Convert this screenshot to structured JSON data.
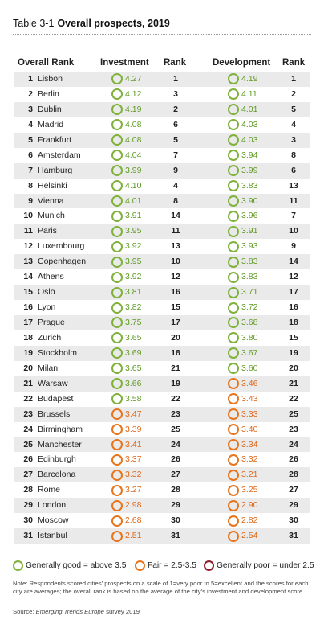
{
  "title": {
    "number": "Table 3-1",
    "text": "Overall prospects, 2019"
  },
  "columns": {
    "overall_rank": "Overall Rank",
    "investment": "Investment",
    "inv_rank": "Rank",
    "development": "Development",
    "dev_rank": "Rank"
  },
  "colors": {
    "good": "#7fb13b",
    "fair": "#e8741b",
    "poor": "#8b1d2c"
  },
  "rows": [
    {
      "rank": "1",
      "city": "Lisbon",
      "inv": "4.27",
      "inv_cat": "good",
      "inv_rank": "1",
      "dev": "4.19",
      "dev_cat": "good",
      "dev_rank": "1"
    },
    {
      "rank": "2",
      "city": "Berlin",
      "inv": "4.12",
      "inv_cat": "good",
      "inv_rank": "3",
      "dev": "4.11",
      "dev_cat": "good",
      "dev_rank": "2"
    },
    {
      "rank": "3",
      "city": "Dublin",
      "inv": "4.19",
      "inv_cat": "good",
      "inv_rank": "2",
      "dev": "4.01",
      "dev_cat": "good",
      "dev_rank": "5"
    },
    {
      "rank": "4",
      "city": "Madrid",
      "inv": "4.08",
      "inv_cat": "good",
      "inv_rank": "6",
      "dev": "4.03",
      "dev_cat": "good",
      "dev_rank": "4"
    },
    {
      "rank": "5",
      "city": "Frankfurt",
      "inv": "4.08",
      "inv_cat": "good",
      "inv_rank": "5",
      "dev": "4.03",
      "dev_cat": "good",
      "dev_rank": "3"
    },
    {
      "rank": "6",
      "city": "Amsterdam",
      "inv": "4.04",
      "inv_cat": "good",
      "inv_rank": "7",
      "dev": "3.94",
      "dev_cat": "good",
      "dev_rank": "8"
    },
    {
      "rank": "7",
      "city": "Hamburg",
      "inv": "3.99",
      "inv_cat": "good",
      "inv_rank": "9",
      "dev": "3.99",
      "dev_cat": "good",
      "dev_rank": "6"
    },
    {
      "rank": "8",
      "city": "Helsinki",
      "inv": "4.10",
      "inv_cat": "good",
      "inv_rank": "4",
      "dev": "3.83",
      "dev_cat": "good",
      "dev_rank": "13"
    },
    {
      "rank": "9",
      "city": "Vienna",
      "inv": "4.01",
      "inv_cat": "good",
      "inv_rank": "8",
      "dev": "3.90",
      "dev_cat": "good",
      "dev_rank": "11"
    },
    {
      "rank": "10",
      "city": "Munich",
      "inv": "3.91",
      "inv_cat": "good",
      "inv_rank": "14",
      "dev": "3.96",
      "dev_cat": "good",
      "dev_rank": "7"
    },
    {
      "rank": "11",
      "city": "Paris",
      "inv": "3.95",
      "inv_cat": "good",
      "inv_rank": "11",
      "dev": "3.91",
      "dev_cat": "good",
      "dev_rank": "10"
    },
    {
      "rank": "12",
      "city": "Luxembourg",
      "inv": "3.92",
      "inv_cat": "good",
      "inv_rank": "13",
      "dev": "3.93",
      "dev_cat": "good",
      "dev_rank": "9"
    },
    {
      "rank": "13",
      "city": "Copenhagen",
      "inv": "3.95",
      "inv_cat": "good",
      "inv_rank": "10",
      "dev": "3.83",
      "dev_cat": "good",
      "dev_rank": "14"
    },
    {
      "rank": "14",
      "city": "Athens",
      "inv": "3.92",
      "inv_cat": "good",
      "inv_rank": "12",
      "dev": "3.83",
      "dev_cat": "good",
      "dev_rank": "12"
    },
    {
      "rank": "15",
      "city": "Oslo",
      "inv": "3.81",
      "inv_cat": "good",
      "inv_rank": "16",
      "dev": "3.71",
      "dev_cat": "good",
      "dev_rank": "17"
    },
    {
      "rank": "16",
      "city": "Lyon",
      "inv": "3.82",
      "inv_cat": "good",
      "inv_rank": "15",
      "dev": "3.72",
      "dev_cat": "good",
      "dev_rank": "16"
    },
    {
      "rank": "17",
      "city": "Prague",
      "inv": "3.75",
      "inv_cat": "good",
      "inv_rank": "17",
      "dev": "3.68",
      "dev_cat": "good",
      "dev_rank": "18"
    },
    {
      "rank": "18",
      "city": "Zurich",
      "inv": "3.65",
      "inv_cat": "good",
      "inv_rank": "20",
      "dev": "3.80",
      "dev_cat": "good",
      "dev_rank": "15"
    },
    {
      "rank": "19",
      "city": "Stockholm",
      "inv": "3.69",
      "inv_cat": "good",
      "inv_rank": "18",
      "dev": "3.67",
      "dev_cat": "good",
      "dev_rank": "19"
    },
    {
      "rank": "20",
      "city": "Milan",
      "inv": "3.65",
      "inv_cat": "good",
      "inv_rank": "21",
      "dev": "3.60",
      "dev_cat": "good",
      "dev_rank": "20"
    },
    {
      "rank": "21",
      "city": "Warsaw",
      "inv": "3.66",
      "inv_cat": "good",
      "inv_rank": "19",
      "dev": "3.46",
      "dev_cat": "fair",
      "dev_rank": "21"
    },
    {
      "rank": "22",
      "city": "Budapest",
      "inv": "3.58",
      "inv_cat": "good",
      "inv_rank": "22",
      "dev": "3.43",
      "dev_cat": "fair",
      "dev_rank": "22"
    },
    {
      "rank": "23",
      "city": "Brussels",
      "inv": "3.47",
      "inv_cat": "fair",
      "inv_rank": "23",
      "dev": "3.33",
      "dev_cat": "fair",
      "dev_rank": "25"
    },
    {
      "rank": "24",
      "city": "Birmingham",
      "inv": "3.39",
      "inv_cat": "fair",
      "inv_rank": "25",
      "dev": "3.40",
      "dev_cat": "fair",
      "dev_rank": "23"
    },
    {
      "rank": "25",
      "city": "Manchester",
      "inv": "3.41",
      "inv_cat": "fair",
      "inv_rank": "24",
      "dev": "3.34",
      "dev_cat": "fair",
      "dev_rank": "24"
    },
    {
      "rank": "26",
      "city": "Edinburgh",
      "inv": "3.37",
      "inv_cat": "fair",
      "inv_rank": "26",
      "dev": "3.32",
      "dev_cat": "fair",
      "dev_rank": "26"
    },
    {
      "rank": "27",
      "city": "Barcelona",
      "inv": "3.32",
      "inv_cat": "fair",
      "inv_rank": "27",
      "dev": "3.21",
      "dev_cat": "fair",
      "dev_rank": "28"
    },
    {
      "rank": "28",
      "city": "Rome",
      "inv": "3.27",
      "inv_cat": "fair",
      "inv_rank": "28",
      "dev": "3.25",
      "dev_cat": "fair",
      "dev_rank": "27"
    },
    {
      "rank": "29",
      "city": "London",
      "inv": "2.98",
      "inv_cat": "fair",
      "inv_rank": "29",
      "dev": "2.90",
      "dev_cat": "fair",
      "dev_rank": "29"
    },
    {
      "rank": "30",
      "city": "Moscow",
      "inv": "2.68",
      "inv_cat": "fair",
      "inv_rank": "30",
      "dev": "2.82",
      "dev_cat": "fair",
      "dev_rank": "30"
    },
    {
      "rank": "31",
      "city": "Istanbul",
      "inv": "2.51",
      "inv_cat": "fair",
      "inv_rank": "31",
      "dev": "2.54",
      "dev_cat": "fair",
      "dev_rank": "31"
    }
  ],
  "legend": {
    "good": "Generally good = above 3.5",
    "fair": "Fair = 2.5-3.5",
    "poor": "Generally poor = under 2.5"
  },
  "note": "Note: Respondents scored cities' prospects on a scale of 1=very poor to 5=excellent and the scores for each city are averages; the overall rank is based on the average of the city's investment and development score.",
  "source": {
    "prefix": "Source: ",
    "publication": "Emerging Trends Europe",
    "suffix": " survey 2019"
  }
}
